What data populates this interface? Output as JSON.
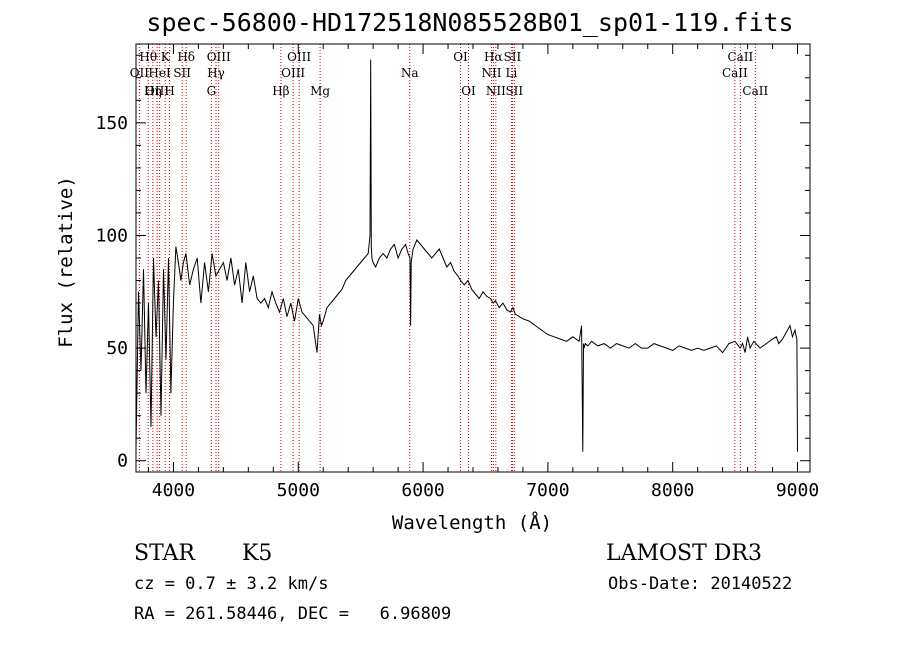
{
  "chart_data": {
    "type": "line",
    "title": "spec-56800-HD172518N085528B01_sp01-119.fits",
    "xlabel": "Wavelength (Å)",
    "ylabel": "Flux (relative)",
    "xlim": [
      3700,
      9100
    ],
    "ylim": [
      -5,
      185
    ],
    "xticks": [
      4000,
      5000,
      6000,
      7000,
      8000,
      9000
    ],
    "xtick_labels": [
      "4000",
      "5000",
      "6000",
      "7000",
      "8000",
      "9000"
    ],
    "yticks": [
      0,
      50,
      100,
      150
    ],
    "ytick_labels": [
      "0",
      "50",
      "100",
      "150"
    ],
    "series": [
      {
        "name": "flux",
        "x": [
          3700,
          3720,
          3740,
          3760,
          3780,
          3800,
          3820,
          3840,
          3860,
          3880,
          3900,
          3920,
          3940,
          3960,
          3980,
          4000,
          4020,
          4040,
          4060,
          4080,
          4100,
          4130,
          4160,
          4190,
          4220,
          4250,
          4280,
          4310,
          4340,
          4370,
          4400,
          4430,
          4460,
          4490,
          4520,
          4550,
          4580,
          4610,
          4640,
          4670,
          4700,
          4730,
          4760,
          4790,
          4820,
          4850,
          4880,
          4910,
          4940,
          4970,
          5000,
          5030,
          5060,
          5090,
          5120,
          5150,
          5170,
          5185,
          5200,
          5230,
          5260,
          5290,
          5320,
          5350,
          5380,
          5410,
          5440,
          5470,
          5500,
          5530,
          5560,
          5575,
          5580,
          5585,
          5590,
          5600,
          5620,
          5650,
          5680,
          5710,
          5740,
          5770,
          5800,
          5830,
          5860,
          5880,
          5895,
          5900,
          5905,
          5920,
          5950,
          5980,
          6010,
          6040,
          6070,
          6100,
          6130,
          6160,
          6190,
          6220,
          6250,
          6280,
          6300,
          6330,
          6360,
          6390,
          6420,
          6450,
          6480,
          6510,
          6540,
          6562,
          6580,
          6610,
          6640,
          6670,
          6700,
          6720,
          6740,
          6770,
          6800,
          6850,
          6900,
          6950,
          7000,
          7050,
          7100,
          7150,
          7200,
          7250,
          7270,
          7280,
          7285,
          7290,
          7300,
          7320,
          7350,
          7400,
          7450,
          7500,
          7550,
          7600,
          7650,
          7700,
          7750,
          7800,
          7850,
          7900,
          7950,
          8000,
          8050,
          8100,
          8150,
          8200,
          8250,
          8300,
          8350,
          8400,
          8450,
          8500,
          8540,
          8560,
          8580,
          8600,
          8620,
          8650,
          8700,
          8750,
          8800,
          8830,
          8850,
          8880,
          8910,
          8940,
          8960,
          8980,
          8990,
          8995,
          9000
        ],
        "y": [
          5,
          75,
          40,
          85,
          30,
          70,
          15,
          90,
          55,
          80,
          20,
          85,
          45,
          90,
          30,
          70,
          95,
          88,
          80,
          88,
          92,
          78,
          85,
          90,
          70,
          88,
          75,
          92,
          82,
          85,
          88,
          80,
          90,
          78,
          85,
          70,
          88,
          75,
          82,
          72,
          70,
          72,
          68,
          75,
          70,
          66,
          72,
          64,
          70,
          62,
          72,
          66,
          64,
          62,
          60,
          48,
          65,
          60,
          62,
          68,
          70,
          72,
          74,
          76,
          80,
          82,
          84,
          86,
          88,
          90,
          92,
          100,
          178,
          95,
          90,
          88,
          86,
          90,
          92,
          90,
          94,
          96,
          90,
          94,
          96,
          92,
          90,
          60,
          88,
          94,
          98,
          96,
          94,
          92,
          90,
          92,
          94,
          90,
          86,
          88,
          84,
          82,
          80,
          78,
          80,
          76,
          74,
          72,
          75,
          73,
          72,
          70,
          71,
          68,
          70,
          67,
          66,
          68,
          65,
          64,
          63,
          62,
          60,
          58,
          56,
          55,
          54,
          53,
          55,
          53,
          60,
          4,
          52,
          50,
          52,
          51,
          53,
          51,
          52,
          50,
          52,
          51,
          50,
          52,
          50,
          50,
          52,
          51,
          50,
          49,
          51,
          50,
          49,
          50,
          49,
          50,
          51,
          48,
          52,
          53,
          50,
          52,
          48,
          55,
          50,
          53,
          50,
          52,
          54,
          55,
          52,
          54,
          57,
          60,
          55,
          58,
          55,
          54,
          4
        ]
      }
    ],
    "emission_lines": [
      {
        "name": "Hθ",
        "wavelength": 3798,
        "row": 1
      },
      {
        "name": "OII",
        "wavelength": 3727,
        "row": 2
      },
      {
        "name": "OIII",
        "wavelength": 3869,
        "row": 3
      },
      {
        "name": "K",
        "wavelength": 3934,
        "row": 1
      },
      {
        "name": "HeI",
        "wavelength": 3889,
        "row": 2
      },
      {
        "name": "Hη",
        "wavelength": 3835,
        "row": 3
      },
      {
        "name": "SII",
        "wavelength": 4070,
        "row": 2
      },
      {
        "name": "H",
        "wavelength": 3969,
        "row": 3
      },
      {
        "name": "Hδ",
        "wavelength": 4102,
        "row": 1
      },
      {
        "name": "OIII",
        "wavelength": 4363,
        "row": 1
      },
      {
        "name": "Hγ",
        "wavelength": 4341,
        "row": 2
      },
      {
        "name": "G",
        "wavelength": 4304,
        "row": 3
      },
      {
        "name": "OIII",
        "wavelength": 5007,
        "row": 1
      },
      {
        "name": "OIII",
        "wavelength": 4959,
        "row": 2
      },
      {
        "name": "Hβ",
        "wavelength": 4861,
        "row": 3
      },
      {
        "name": "Mg",
        "wavelength": 5175,
        "row": 3
      },
      {
        "name": "Na",
        "wavelength": 5893,
        "row": 2
      },
      {
        "name": "OI",
        "wavelength": 6300,
        "row": 1
      },
      {
        "name": "OI",
        "wavelength": 6364,
        "row": 3
      },
      {
        "name": "Hα",
        "wavelength": 6563,
        "row": 1
      },
      {
        "name": "SII",
        "wavelength": 6716,
        "row": 1
      },
      {
        "name": "NII",
        "wavelength": 6548,
        "row": 2
      },
      {
        "name": "Li",
        "wavelength": 6708,
        "row": 2
      },
      {
        "name": "NII",
        "wavelength": 6583,
        "row": 3
      },
      {
        "name": "SII",
        "wavelength": 6731,
        "row": 3
      },
      {
        "name": "CaII",
        "wavelength": 8542,
        "row": 1
      },
      {
        "name": "CaII",
        "wavelength": 8498,
        "row": 2
      },
      {
        "name": "CaII",
        "wavelength": 8662,
        "row": 3
      }
    ],
    "line_color": "#cc0000"
  },
  "info": {
    "object_class": "STAR",
    "subclass": "K5",
    "survey": "LAMOST DR3",
    "cz": "cz = 0.7 ± 3.2 km/s",
    "obs_date": "Obs-Date: 20140522",
    "coords": "RA = 261.58446, DEC =   6.96809"
  }
}
